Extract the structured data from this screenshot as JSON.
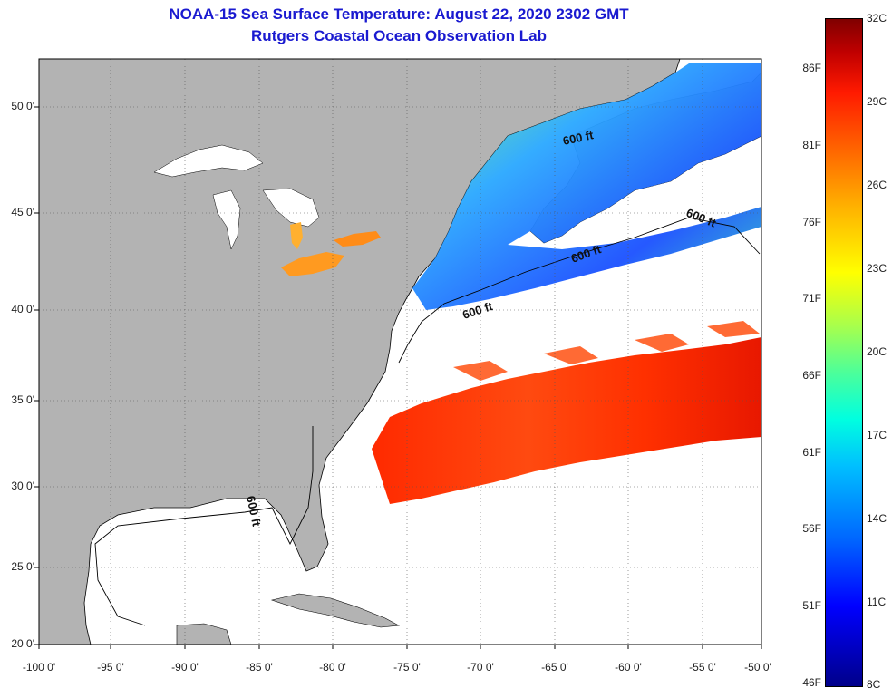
{
  "title": {
    "line1": "NOAA-15 Sea Surface Temperature:  August 22, 2020 2302 GMT",
    "line2": "Rutgers Coastal Ocean Observation Lab"
  },
  "map": {
    "lat_labels": [
      "50 0'",
      "45 0'",
      "40 0'",
      "35 0'",
      "30 0'",
      "25 0'",
      "20 0'"
    ],
    "lon_labels": [
      "-100 0'",
      "-95 0'",
      "-90 0'",
      "-85 0'",
      "-80 0'",
      "-75 0'",
      "-70 0'",
      "-65 0'",
      "-60 0'",
      "-55 0'",
      "-50 0'"
    ],
    "contour_labels": [
      "600 ft",
      "600 ft",
      "600 ft",
      "600 ft",
      "600 ft"
    ],
    "colors": {
      "land": "#b3b3b3",
      "ocean": "#ffffff",
      "warm_water": "#ff3a00",
      "cold_water": "#2a7cff"
    }
  },
  "colorbar": {
    "fahrenheit_labels": [
      "86F",
      "81F",
      "76F",
      "71F",
      "66F",
      "61F",
      "56F",
      "51F",
      "46F"
    ],
    "celsius_labels": [
      "32C",
      "29C",
      "26C",
      "23C",
      "20C",
      "17C",
      "14C",
      "11C",
      "8C"
    ]
  }
}
